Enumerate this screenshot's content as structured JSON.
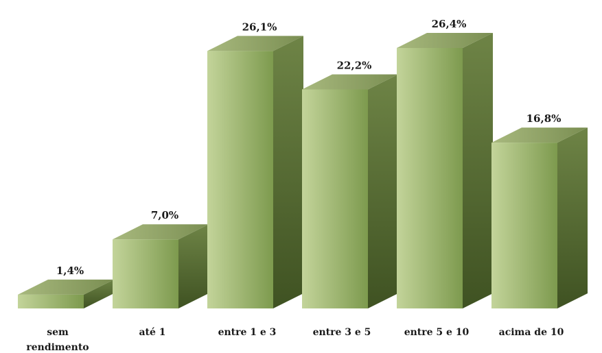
{
  "chart_data": {
    "type": "bar",
    "categories": [
      [
        "sem",
        "rendimento"
      ],
      [
        "até 1"
      ],
      [
        "entre 1 e 3"
      ],
      [
        "entre 3 e 5"
      ],
      [
        "entre 5 e 10"
      ],
      [
        "acima de 10"
      ]
    ],
    "values": [
      1.4,
      7.0,
      26.1,
      22.2,
      26.4,
      16.8
    ],
    "value_labels": [
      "1,4%",
      "7,0%",
      "26,1%",
      "22,2%",
      "26,4%",
      "16,8%"
    ],
    "ylim": [
      0,
      26.4
    ],
    "grid": false,
    "legend": "none",
    "style": "3d-column",
    "colors": {
      "front_light": "#c3d49a",
      "front_dark": "#7d9a4e",
      "side_light": "#6e8446",
      "side_dark": "#3f5222",
      "top_light": "#a8b97e",
      "top_dark": "#7a8e52"
    }
  }
}
